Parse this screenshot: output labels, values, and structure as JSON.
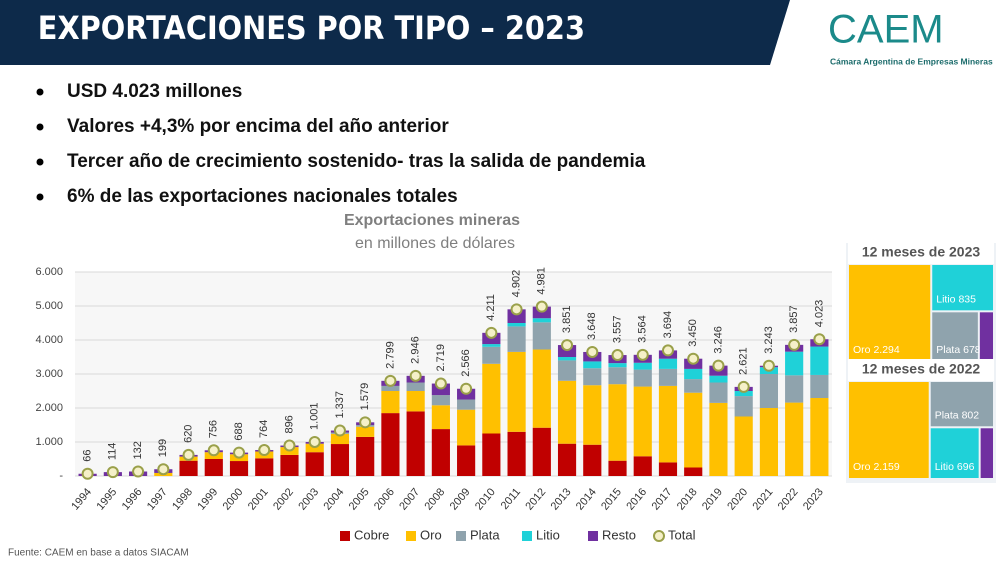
{
  "header": {
    "title": "EXPORTACIONES POR TIPO – 2023"
  },
  "logo": {
    "name": "CAEM",
    "subtitle": "Cámara Argentina de Empresas Mineras"
  },
  "bullets": [
    "USD 4.023 millones",
    "Valores +4,3% por encima del año anterior",
    "Tercer año de crecimiento sostenido- tras la salida de pandemia",
    "6% de las exportaciones nacionales totales"
  ],
  "source": "Fuente: CAEM en base a datos SIACAM",
  "chart_data": [
    {
      "type": "bar",
      "stacked": true,
      "title": "Exportaciones mineras",
      "subtitle": "en millones de dólares",
      "categories": [
        "1994",
        "1995",
        "1996",
        "1997",
        "1998",
        "1999",
        "2000",
        "2001",
        "2002",
        "2003",
        "2004",
        "2005",
        "2006",
        "2007",
        "2008",
        "2009",
        "2010",
        "2011",
        "2012",
        "2013",
        "2014",
        "2015",
        "2016",
        "2017",
        "2018",
        "2019",
        "2020",
        "2021",
        "2022",
        "2023"
      ],
      "series": [
        {
          "name": "Cobre",
          "color": "#c00000",
          "values": [
            0,
            0,
            0,
            0,
            450,
            500,
            440,
            520,
            620,
            700,
            940,
            1150,
            1850,
            1900,
            1380,
            900,
            1250,
            1300,
            1420,
            950,
            920,
            450,
            580,
            400,
            250,
            0,
            0,
            0,
            0,
            0
          ]
        },
        {
          "name": "Oro",
          "color": "#ffc000",
          "values": [
            0,
            0,
            0,
            90,
            120,
            200,
            200,
            200,
            230,
            250,
            300,
            300,
            650,
            600,
            700,
            1050,
            2050,
            2350,
            2300,
            1850,
            1750,
            2250,
            2050,
            2250,
            2200,
            2150,
            1750,
            2000,
            2159,
            2294
          ]
        },
        {
          "name": "Plata",
          "color": "#8fa3ad",
          "values": [
            0,
            0,
            0,
            0,
            0,
            0,
            0,
            0,
            0,
            0,
            40,
            50,
            150,
            250,
            300,
            300,
            500,
            750,
            800,
            600,
            500,
            500,
            500,
            500,
            400,
            600,
            600,
            1000,
            802,
            678
          ]
        },
        {
          "name": "Litio",
          "color": "#1fd1d8",
          "values": [
            0,
            0,
            0,
            0,
            0,
            0,
            0,
            0,
            0,
            0,
            0,
            0,
            0,
            0,
            0,
            0,
            80,
            100,
            120,
            100,
            200,
            120,
            200,
            300,
            300,
            200,
            150,
            200,
            696,
            835
          ]
        },
        {
          "name": "Resto",
          "color": "#7030a0",
          "values": [
            66,
            114,
            132,
            109,
            50,
            56,
            48,
            44,
            46,
            51,
            57,
            79,
            149,
            196,
            339,
            316,
            331,
            402,
            341,
            351,
            278,
            237,
            234,
            244,
            300,
            296,
            121,
            43,
            200,
            216
          ]
        },
        {
          "name": "Total",
          "type": "scatter",
          "color": "#f5f0c8",
          "values": [
            66,
            114,
            132,
            199,
            620,
            756,
            688,
            764,
            896,
            1001,
            1337,
            1579,
            2799,
            2946,
            2719,
            2566,
            4211,
            4902,
            4981,
            3851,
            3648,
            3557,
            3564,
            3694,
            3450,
            3246,
            2621,
            3243,
            3857,
            4023
          ],
          "value_labels": [
            "66",
            "114",
            "132",
            "199",
            "620",
            "756",
            "688",
            "764",
            "896",
            "1.001",
            "1.337",
            "1.579",
            "2.799",
            "2.946",
            "2.719",
            "2.566",
            "4.211",
            "4.902",
            "4.981",
            "3.851",
            "3.648",
            "3.557",
            "3.564",
            "3.694",
            "3.450",
            "3.246",
            "2.621",
            "3.243",
            "3.857",
            "4.023"
          ]
        }
      ],
      "ylim": [
        0,
        6000
      ],
      "yticks": [
        {
          "value": 0,
          "label": "-"
        },
        {
          "value": 1000,
          "label": "1.000"
        },
        {
          "value": 2000,
          "label": "2.000"
        },
        {
          "value": 3000,
          "label": "3.000"
        },
        {
          "value": 4000,
          "label": "4.000"
        },
        {
          "value": 5000,
          "label": "5.000"
        },
        {
          "value": 6000,
          "label": "6.000"
        }
      ],
      "grid": true,
      "legend": "bottom"
    },
    {
      "type": "treemap",
      "title": "12 meses de 2023",
      "categories": [
        "Oro",
        "Litio",
        "Plata",
        null
      ],
      "values": [
        2294,
        835,
        678,
        216
      ],
      "value_labels": [
        "2.294",
        "835",
        "678",
        null
      ],
      "colors": [
        "#ffc000",
        "#1fd1d8",
        "#8fa3ad",
        "#7030a0"
      ]
    },
    {
      "type": "treemap",
      "title": "12 meses de 2022",
      "categories": [
        "Oro",
        "Plata",
        "Litio",
        null
      ],
      "values": [
        2159,
        802,
        696,
        200
      ],
      "value_labels": [
        "2.159",
        "802",
        "696",
        null
      ],
      "colors": [
        "#ffc000",
        "#8fa3ad",
        "#1fd1d8",
        "#7030a0"
      ]
    }
  ]
}
